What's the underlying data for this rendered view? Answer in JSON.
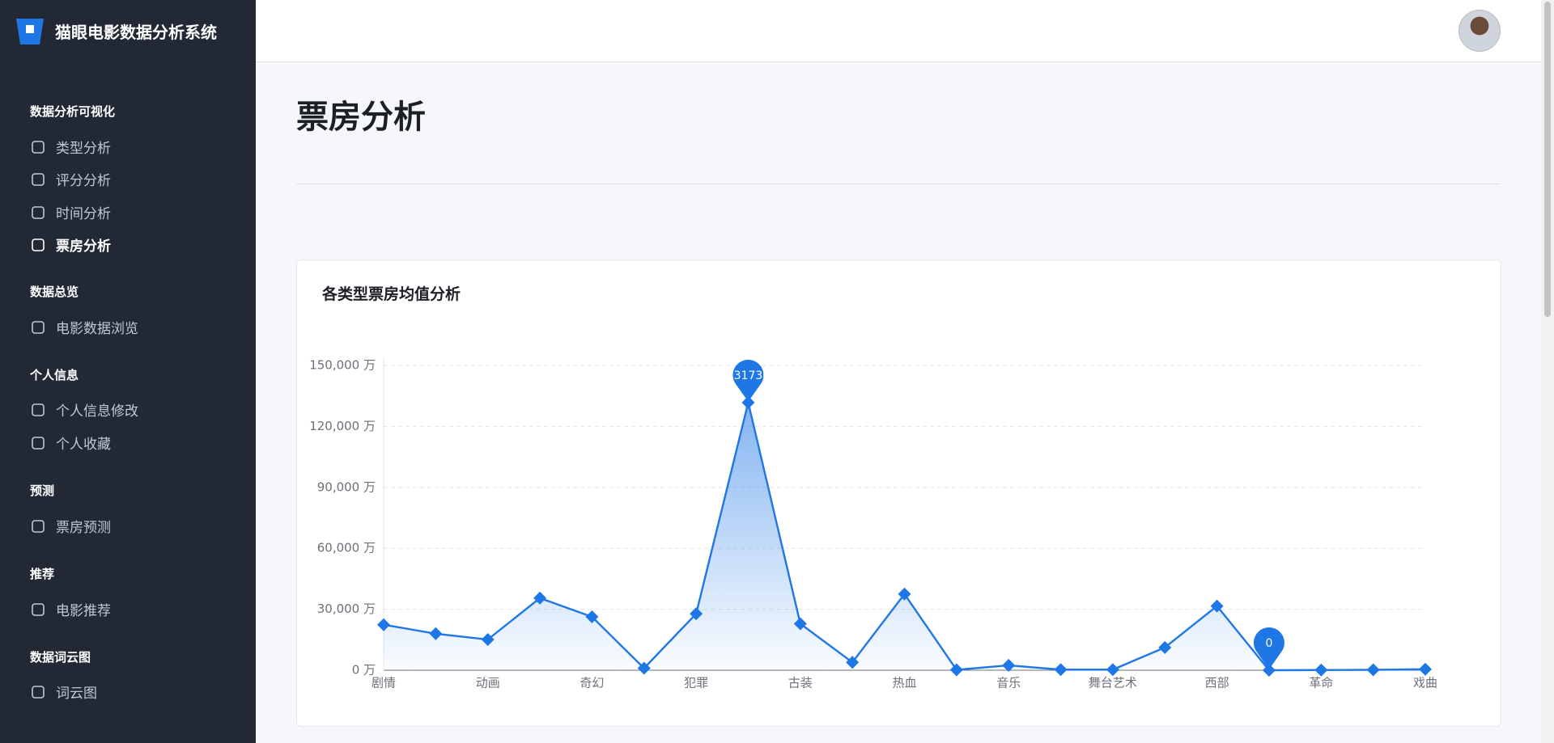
{
  "brand": "猫眼电影数据分析系统",
  "menu": [
    {
      "section": "数据分析可视化",
      "items": [
        "类型分析",
        "评分分析",
        "时间分析",
        "票房分析"
      ]
    },
    {
      "section": "数据总览",
      "items": [
        "电影数据浏览"
      ]
    },
    {
      "section": "个人信息",
      "items": [
        "个人信息修改",
        "个人收藏"
      ]
    },
    {
      "section": "预测",
      "items": [
        "票房预测"
      ]
    },
    {
      "section": "推荐",
      "items": [
        "电影推荐"
      ]
    },
    {
      "section": "数据词云图",
      "items": [
        "词云图"
      ]
    }
  ],
  "page_title": "票房分析",
  "chart_data": {
    "type": "line",
    "title": "各类型票房均值分析",
    "categories": [
      "剧情",
      null,
      "动画",
      null,
      "奇幻",
      null,
      "犯罪",
      null,
      "古装",
      null,
      "热血",
      null,
      "音乐",
      null,
      "舞台艺术",
      null,
      "西部",
      null,
      "革命",
      null,
      "戏曲"
    ],
    "values": [
      22400,
      18000,
      15100,
      35500,
      26300,
      1000,
      27800,
      131730,
      22900,
      3900,
      37500,
      200,
      2400,
      300,
      300,
      11200,
      31600,
      0,
      100,
      200,
      500
    ],
    "color": "#1f77e6",
    "ylim": [
      0,
      150000
    ],
    "yticks": [
      {
        "value": 0,
        "label": "0 万"
      },
      {
        "value": 30000,
        "label": "30,000 万"
      },
      {
        "value": 60000,
        "label": "60,000 万"
      },
      {
        "value": 90000,
        "label": "90,000 万"
      },
      {
        "value": 120000,
        "label": "120,000 万"
      },
      {
        "value": 150000,
        "label": "150,000 万"
      }
    ],
    "grid": true,
    "mark_points": [
      7,
      17
    ]
  }
}
